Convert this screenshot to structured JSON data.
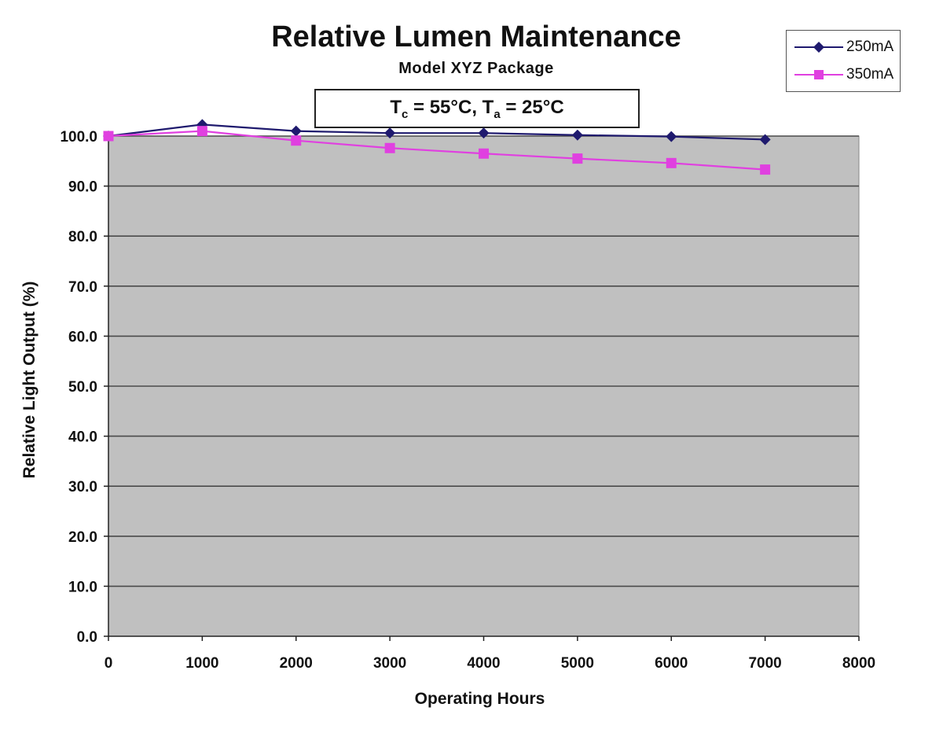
{
  "chart_data": {
    "type": "line",
    "title": "Relative Lumen Maintenance",
    "subtitle": "Model XYZ Package",
    "annotation": {
      "parts": [
        {
          "text": "T",
          "sub": "c"
        },
        {
          "text": " = 55°C, T",
          "sub": "a"
        },
        {
          "text": " = 25°C",
          "sub": ""
        }
      ]
    },
    "xlabel": "Operating Hours",
    "ylabel": "Relative Light Output (%)",
    "xlim": [
      0,
      8000
    ],
    "ylim": [
      0,
      100
    ],
    "x_ticks": [
      "0",
      "1000",
      "2000",
      "3000",
      "4000",
      "5000",
      "6000",
      "7000",
      "8000"
    ],
    "y_ticks": [
      "0.0",
      "10.0",
      "20.0",
      "30.0",
      "40.0",
      "50.0",
      "60.0",
      "70.0",
      "80.0",
      "90.0",
      "100.0"
    ],
    "grid": "horizontal",
    "legend_position": "top-right",
    "plot_background": "#c0c0c0",
    "series": [
      {
        "name": "250mA",
        "color": "#1f1a6e",
        "marker": "diamond",
        "x": [
          0,
          1000,
          2000,
          3000,
          4000,
          5000,
          6000,
          7000
        ],
        "y": [
          100.0,
          102.3,
          101.0,
          100.6,
          100.6,
          100.2,
          99.9,
          99.3
        ]
      },
      {
        "name": "350mA",
        "color": "#e040e0",
        "marker": "square",
        "x": [
          0,
          1000,
          2000,
          3000,
          4000,
          5000,
          6000,
          7000
        ],
        "y": [
          100.0,
          101.0,
          99.1,
          97.6,
          96.5,
          95.5,
          94.6,
          93.3
        ]
      }
    ]
  }
}
